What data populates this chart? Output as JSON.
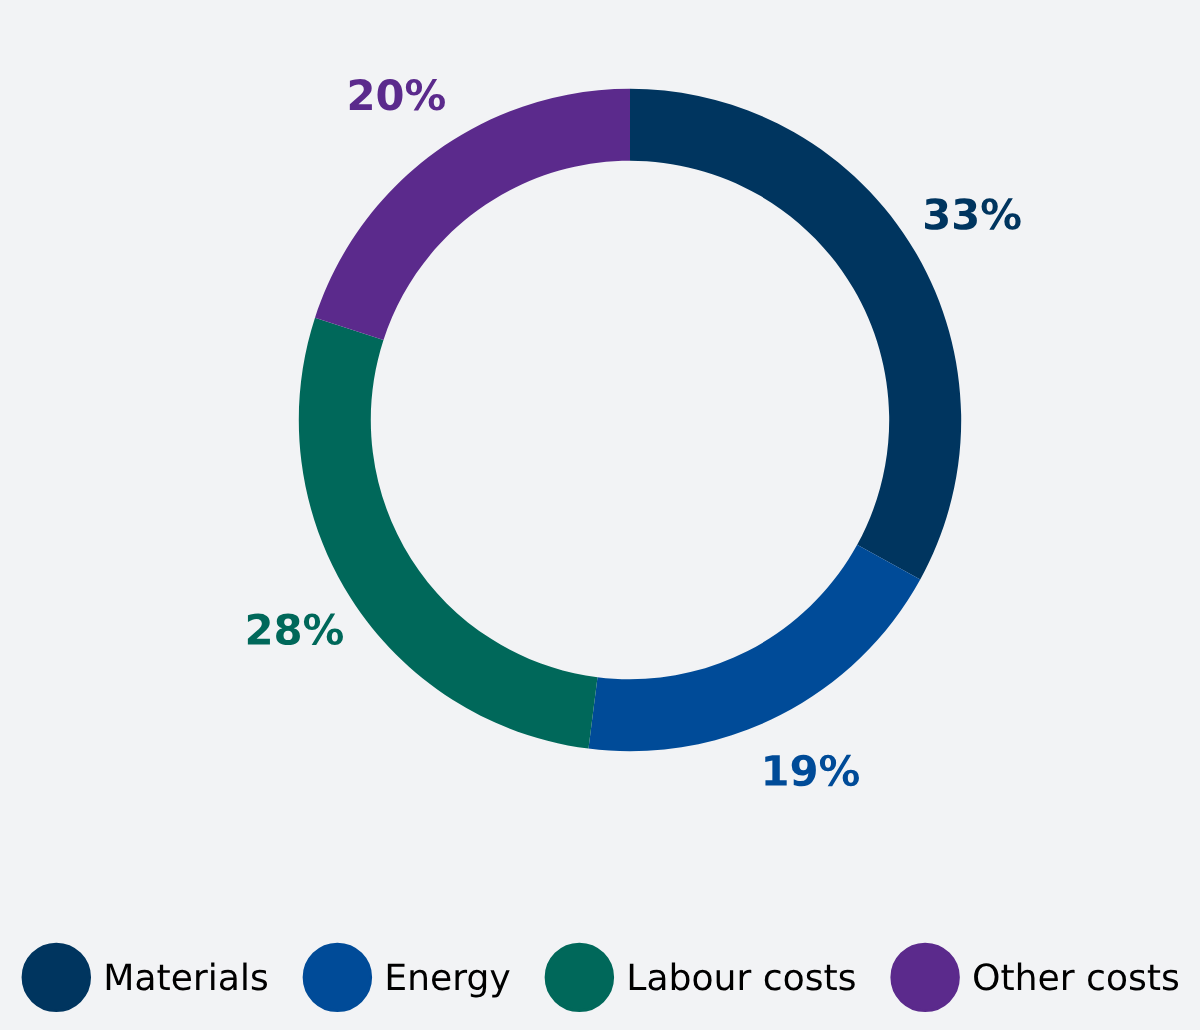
{
  "chart_data": {
    "type": "donut",
    "categories": [
      "Materials",
      "Energy",
      "Labour costs",
      "Other costs"
    ],
    "values": [
      33,
      19,
      28,
      20
    ],
    "colors": [
      "#00355f",
      "#004b98",
      "#00685a",
      "#5b2a8c"
    ],
    "value_labels": [
      "33%",
      "19%",
      "28%",
      "20%"
    ],
    "legend": "bottom"
  }
}
